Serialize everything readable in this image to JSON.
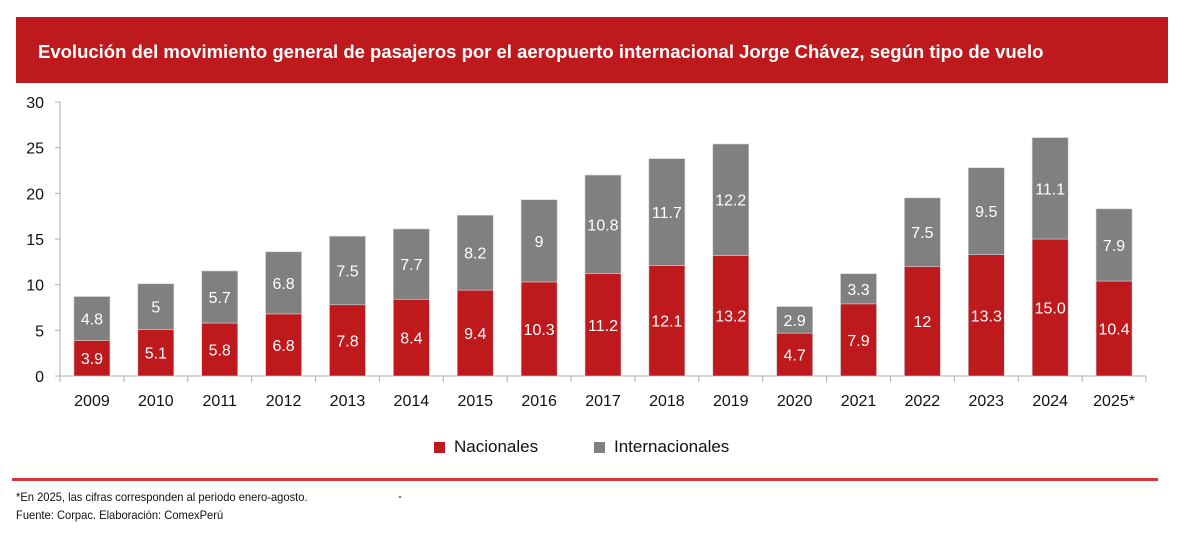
{
  "header": {
    "title": "Evolución del movimiento general de pasajeros por el aeropuerto internacional Jorge Chávez, según tipo de vuelo"
  },
  "colors": {
    "brand_red": "#be1a1d",
    "nacionales": "#be1a1d",
    "internacionales": "#808080",
    "axis": "#b0b0b0",
    "rule": "#d9333a"
  },
  "chart_data": {
    "type": "bar",
    "stacked": true,
    "title": "Evolución del movimiento general de pasajeros por el aeropuerto internacional Jorge Chávez, según tipo de vuelo",
    "xlabel": "",
    "ylabel": "",
    "ylim": [
      0,
      30
    ],
    "yticks": [
      0,
      5,
      10,
      15,
      20,
      25,
      30
    ],
    "grid": false,
    "legend_position": "bottom",
    "categories": [
      "2009",
      "2010",
      "2011",
      "2012",
      "2013",
      "2014",
      "2015",
      "2016",
      "2017",
      "2018",
      "2019",
      "2020",
      "2021",
      "2022",
      "2023",
      "2024",
      "2025*"
    ],
    "series": [
      {
        "name": "Nacionales",
        "color": "#be1a1d",
        "values": [
          3.9,
          5.1,
          5.8,
          6.8,
          7.8,
          8.4,
          9.4,
          10.3,
          11.2,
          12.1,
          13.2,
          4.7,
          7.9,
          12,
          13.3,
          15.0,
          10.4
        ],
        "labels": [
          "3.9",
          "5.1",
          "5.8",
          "6.8",
          "7.8",
          "8.4",
          "9.4",
          "10.3",
          "11.2",
          "12.1",
          "13.2",
          "4.7",
          "7.9",
          "12",
          "13.3",
          "15.0",
          "10.4"
        ]
      },
      {
        "name": "Internacionales",
        "color": "#808080",
        "values": [
          4.8,
          5,
          5.7,
          6.8,
          7.5,
          7.7,
          8.2,
          9,
          10.8,
          11.7,
          12.2,
          2.9,
          3.3,
          7.5,
          9.5,
          11.1,
          7.9
        ],
        "labels": [
          "4.8",
          "5",
          "5.7",
          "6.8",
          "7.5",
          "7.7",
          "8.2",
          "9",
          "10.8",
          "11.7",
          "12.2",
          "2.9",
          "3.3",
          "7.5",
          "9.5",
          "11.1",
          "7.9"
        ]
      }
    ]
  },
  "legend": {
    "items": [
      {
        "label": "Nacionales",
        "color": "#be1a1d"
      },
      {
        "label": "Internacionales",
        "color": "#808080"
      }
    ]
  },
  "footer": {
    "note": "*En 2025, las cifras corresponden al periodo enero-agosto.",
    "dash": "-",
    "source": "Fuente: Corpac. Elaboración: ComexPerú"
  }
}
